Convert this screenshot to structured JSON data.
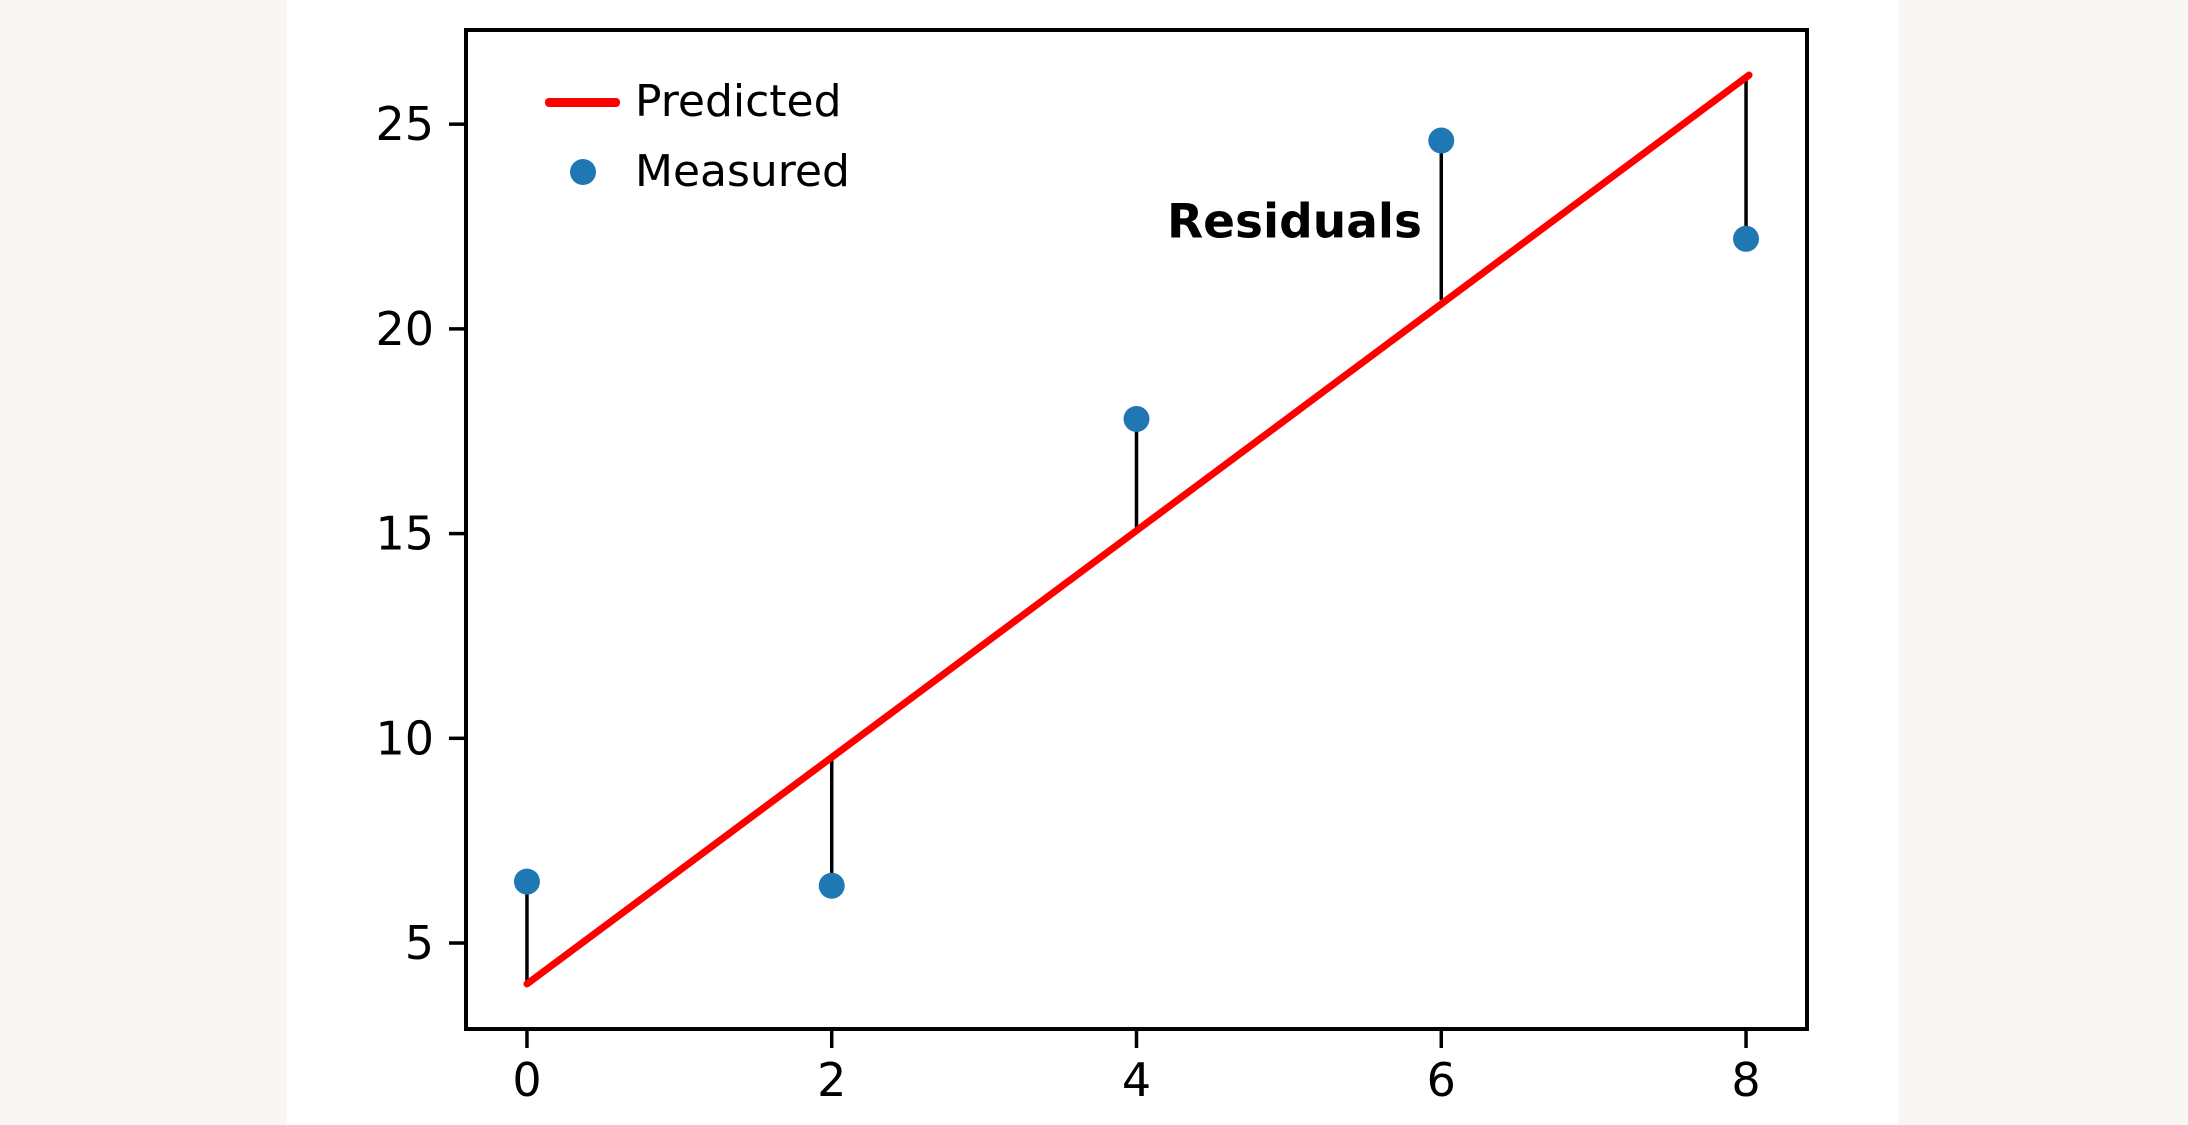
{
  "page": {
    "background": "#f8f7f4",
    "figure_background": "#ffffff"
  },
  "chart_data": {
    "type": "scatter",
    "title": "",
    "x": [
      0,
      2,
      4,
      6,
      8
    ],
    "series": [
      {
        "name": "Predicted",
        "type": "line",
        "color": "#ff0000",
        "x": [
          0,
          8.02
        ],
        "y": [
          4.0,
          26.2
        ]
      },
      {
        "name": "Measured",
        "type": "scatter",
        "color": "#1f77b4",
        "x": [
          0,
          2,
          4,
          6,
          8
        ],
        "y": [
          6.5,
          6.4,
          17.8,
          24.6,
          22.2
        ]
      }
    ],
    "predicted_at_x": [
      4.0,
      9.6,
      15.1,
      20.7,
      26.2
    ],
    "residual_color": "#000000",
    "residual_lines": [
      {
        "x": 0,
        "measured": 6.5,
        "predicted": 4.0
      },
      {
        "x": 2,
        "measured": 6.4,
        "predicted": 9.6
      },
      {
        "x": 4,
        "measured": 17.8,
        "predicted": 15.1
      },
      {
        "x": 6,
        "measured": 24.6,
        "predicted": 20.7
      },
      {
        "x": 8,
        "measured": 22.2,
        "predicted": 26.2
      }
    ],
    "annotation": {
      "text": "Residuals",
      "x": 5.9,
      "y": 22.6,
      "align": "right",
      "bold": true
    },
    "axes": {
      "xticks": [
        0,
        2,
        4,
        6,
        8
      ],
      "yticks": [
        5,
        10,
        15,
        20,
        25
      ],
      "xlim": [
        -0.4,
        8.4
      ],
      "ylim": [
        2.9,
        27.3
      ],
      "xlabel": "",
      "ylabel": "",
      "grid": false
    },
    "legend": {
      "position": "upper left",
      "frame": false,
      "items": [
        {
          "label": "Predicted",
          "marker": "line",
          "color": "#ff0000"
        },
        {
          "label": "Measured",
          "marker": "dot",
          "color": "#1f77b4"
        }
      ]
    }
  }
}
